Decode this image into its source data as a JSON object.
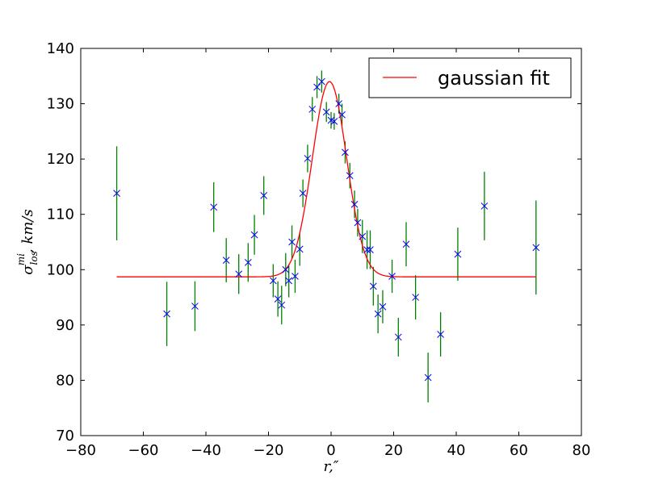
{
  "chart_data": {
    "type": "scatter",
    "title": "",
    "xlabel": "r,″",
    "ylabel_main": "σ",
    "ylabel_sup": "mi",
    "ylabel_sub": "los",
    "ylabel_rest": ", km/s",
    "xlim": [
      -80,
      80
    ],
    "ylim": [
      70,
      140
    ],
    "xticks": [
      -80,
      -60,
      -40,
      -20,
      0,
      20,
      40,
      60,
      80
    ],
    "yticks": [
      70,
      80,
      90,
      100,
      110,
      120,
      130,
      140
    ],
    "xtick_labels": [
      "−80",
      "−60",
      "−40",
      "−20",
      "0",
      "20",
      "40",
      "60",
      "80"
    ],
    "ytick_labels": [
      "70",
      "80",
      "90",
      "100",
      "110",
      "120",
      "130",
      "140"
    ],
    "grid": false,
    "legend_position": "top-right",
    "colors": {
      "fit": "#ff0000",
      "marker": "#0000ff",
      "errorbar": "#008000"
    },
    "legend": [
      {
        "label": "gaussian fit",
        "color": "#ff0000"
      }
    ],
    "fit": {
      "baseline": 98.7,
      "amplitude": 35.3,
      "center": -0.5,
      "sigma": 5.5,
      "x_range": [
        -68.5,
        65.5
      ]
    },
    "points": [
      {
        "x": -68.5,
        "y": 113.8,
        "err": 8.5
      },
      {
        "x": -52.5,
        "y": 92.0,
        "err": 5.8
      },
      {
        "x": -43.5,
        "y": 93.4,
        "err": 4.5
      },
      {
        "x": -37.5,
        "y": 111.3,
        "err": 4.5
      },
      {
        "x": -33.5,
        "y": 101.7,
        "err": 4.0
      },
      {
        "x": -29.5,
        "y": 99.2,
        "err": 3.6
      },
      {
        "x": -26.5,
        "y": 101.3,
        "err": 3.5
      },
      {
        "x": -24.5,
        "y": 106.3,
        "err": 3.6
      },
      {
        "x": -21.5,
        "y": 113.4,
        "err": 3.5
      },
      {
        "x": -18.5,
        "y": 98.0,
        "err": 3.0
      },
      {
        "x": -17.0,
        "y": 94.7,
        "err": 3.2
      },
      {
        "x": -15.8,
        "y": 93.6,
        "err": 3.5
      },
      {
        "x": -14.5,
        "y": 100.0,
        "err": 3.0
      },
      {
        "x": -13.5,
        "y": 98.0,
        "err": 3.0
      },
      {
        "x": -12.5,
        "y": 105.0,
        "err": 3.0
      },
      {
        "x": -11.5,
        "y": 98.8,
        "err": 3.0
      },
      {
        "x": -10.0,
        "y": 103.7,
        "err": 3.0
      },
      {
        "x": -9.0,
        "y": 113.8,
        "err": 2.5
      },
      {
        "x": -7.5,
        "y": 120.1,
        "err": 2.5
      },
      {
        "x": -6.0,
        "y": 129.0,
        "err": 2.2
      },
      {
        "x": -4.5,
        "y": 133.0,
        "err": 2.0
      },
      {
        "x": -3.0,
        "y": 134.0,
        "err": 2.0
      },
      {
        "x": -1.5,
        "y": 128.5,
        "err": 1.8
      },
      {
        "x": 0.0,
        "y": 127.0,
        "err": 1.5
      },
      {
        "x": 1.0,
        "y": 126.8,
        "err": 1.5
      },
      {
        "x": 2.5,
        "y": 130.0,
        "err": 1.8
      },
      {
        "x": 3.5,
        "y": 128.0,
        "err": 2.0
      },
      {
        "x": 4.5,
        "y": 121.2,
        "err": 2.0
      },
      {
        "x": 6.0,
        "y": 117.0,
        "err": 2.3
      },
      {
        "x": 7.5,
        "y": 111.8,
        "err": 2.5
      },
      {
        "x": 8.5,
        "y": 108.5,
        "err": 2.5
      },
      {
        "x": 10.0,
        "y": 106.0,
        "err": 3.0
      },
      {
        "x": 11.5,
        "y": 103.6,
        "err": 3.5
      },
      {
        "x": 12.5,
        "y": 103.6,
        "err": 3.5
      },
      {
        "x": 13.5,
        "y": 97.0,
        "err": 3.5
      },
      {
        "x": 15.0,
        "y": 92.0,
        "err": 3.5
      },
      {
        "x": 16.5,
        "y": 93.3,
        "err": 3.0
      },
      {
        "x": 19.5,
        "y": 98.8,
        "err": 3.0
      },
      {
        "x": 21.5,
        "y": 87.8,
        "err": 3.5
      },
      {
        "x": 24.0,
        "y": 104.6,
        "err": 4.0
      },
      {
        "x": 27.0,
        "y": 95.0,
        "err": 4.0
      },
      {
        "x": 31.0,
        "y": 80.5,
        "err": 4.5
      },
      {
        "x": 35.0,
        "y": 88.3,
        "err": 4.0
      },
      {
        "x": 40.5,
        "y": 102.8,
        "err": 4.8
      },
      {
        "x": 49.0,
        "y": 111.5,
        "err": 6.2
      },
      {
        "x": 65.5,
        "y": 104.0,
        "err": 8.5
      }
    ]
  }
}
